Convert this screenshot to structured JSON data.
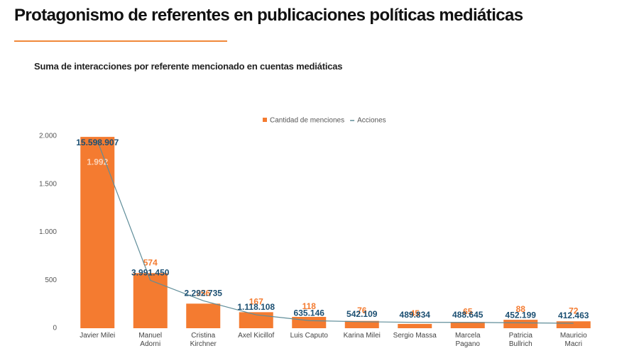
{
  "chart_data": {
    "type": "bar",
    "title": "Protagonismo de referentes en publicaciones políticas mediáticas",
    "subtitle": "Suma de interacciones por referente mencionado en cuentas mediáticas",
    "categories": [
      "Javier Milei",
      "Manuel\nAdorni",
      "Cristina\nKirchner",
      "Axel Kicillof",
      "Luis Caputo",
      "Karina Milei",
      "Sergio Massa",
      "Marcela\nPagano",
      "Patricia\nBullrich",
      "Mauricio\nMacri"
    ],
    "series": [
      {
        "name": "Cantidad de menciones",
        "color": "#f47b30",
        "values": [
          1992,
          574,
          256,
          167,
          118,
          76,
          45,
          65,
          88,
          72
        ],
        "value_labels": [
          "1.992",
          "574",
          "256",
          "167",
          "118",
          "76",
          "45",
          "65",
          "88",
          "72"
        ]
      },
      {
        "name": "Acciones",
        "color": "#5f8d99",
        "type": "line",
        "axis": "y2",
        "values": [
          15598907,
          3991450,
          2292735,
          1118108,
          635146,
          542109,
          489834,
          488645,
          452199,
          412463
        ],
        "value_labels": [
          "15.598.907",
          "3.991.450",
          "2.292.735",
          "1.118.108",
          "635.146",
          "542.109",
          "489.834",
          "488.645",
          "452.199",
          "412.463"
        ]
      }
    ],
    "ylim": [
      0,
      2000
    ],
    "yticks": [
      0,
      500,
      {
        "value": 1000,
        "label": "1.000"
      },
      {
        "value": 1500,
        "label": "1.500"
      },
      {
        "value": 2000,
        "label": "2.000"
      }
    ],
    "y2lim": [
      0,
      16000000
    ],
    "legend": "top"
  }
}
